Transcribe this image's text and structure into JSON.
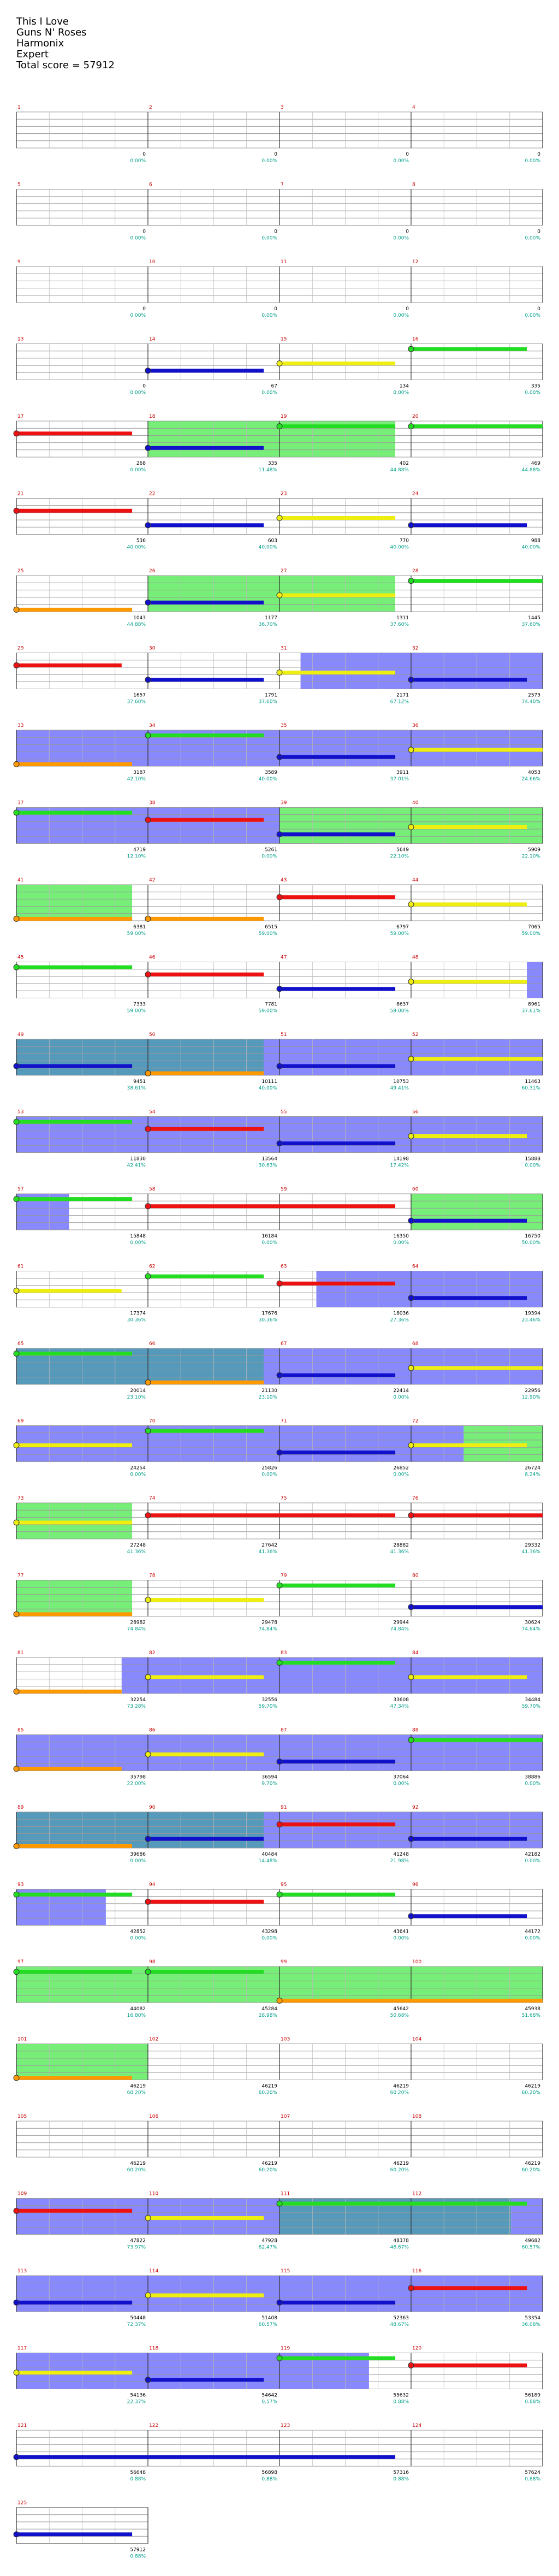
{
  "song": {
    "title": "This I Love",
    "artist": "Guns N' Roses",
    "game": "Harmonix",
    "difficulty": "Expert",
    "total_score_label": "Total score = 57912"
  },
  "colors": {
    "green": "#22dd22",
    "red": "#ee1111",
    "yellow": "#eeee11",
    "blue": "#1111cc",
    "orange": "#ff9900",
    "overdrive_fill": "#8888ff",
    "solo_fill": "#77ee77",
    "overlap_fill": "#5599bb",
    "score_text": "#00a08a",
    "measure_text": "#cc0000"
  },
  "chart_data": {
    "type": "table",
    "measures_per_row": 4,
    "measure_count": 125,
    "rows": [
      {
        "scores": [
          "0",
          "0",
          "0",
          "0"
        ],
        "pct": [
          "0.00%",
          "0.00%",
          "0.00%",
          "0.00%"
        ]
      },
      {
        "scores": [
          "0",
          "0",
          "0",
          "0"
        ],
        "pct": [
          "0.00%",
          "0.00%",
          "0.00%",
          "0.00%"
        ]
      },
      {
        "scores": [
          "0",
          "0",
          "0",
          "0"
        ],
        "pct": [
          "0.00%",
          "0.00%",
          "0.00%",
          "0.00%"
        ]
      },
      {
        "scores": [
          "0",
          "67",
          "134",
          "335"
        ],
        "pct": [
          "0.00%",
          "0.00%",
          "0.00%",
          "0.00%"
        ]
      },
      {
        "scores": [
          "268",
          "335",
          "402",
          "469"
        ],
        "pct": [
          "0.00%",
          "11.48%",
          "44.88%",
          "44.88%"
        ]
      },
      {
        "scores": [
          "536",
          "603",
          "770",
          "988"
        ],
        "pct": [
          "40.00%",
          "40.00%",
          "40.00%",
          "40.00%"
        ]
      },
      {
        "scores": [
          "1043",
          "1177",
          "1311",
          "1445"
        ],
        "pct": [
          "44.88%",
          "36.70%",
          "37.60%",
          "37.60%"
        ]
      },
      {
        "scores": [
          "1657",
          "1791",
          "2171",
          "2573"
        ],
        "pct": [
          "37.60%",
          "37.60%",
          "67.12%",
          "74.40%"
        ]
      },
      {
        "scores": [
          "3187",
          "3589",
          "3911",
          "4053"
        ],
        "pct": [
          "42.10%",
          "40.00%",
          "37.01%",
          "24.66%"
        ]
      },
      {
        "scores": [
          "4719",
          "5261",
          "5649",
          "5909"
        ],
        "pct": [
          "12.10%",
          "0.00%",
          "22.10%",
          "22.10%"
        ]
      },
      {
        "scores": [
          "6381",
          "6515",
          "6797",
          "7065"
        ],
        "pct": [
          "59.00%",
          "59.00%",
          "59.00%",
          "59.00%"
        ]
      },
      {
        "scores": [
          "7333",
          "7781",
          "8637",
          "8961"
        ],
        "pct": [
          "59.00%",
          "59.00%",
          "59.00%",
          "37.61%"
        ]
      },
      {
        "scores": [
          "9451",
          "10111",
          "10753",
          "11463"
        ],
        "pct": [
          "38.61%",
          "40.00%",
          "49.41%",
          "60.31%"
        ]
      },
      {
        "scores": [
          "11830",
          "13564",
          "14198",
          "15888"
        ],
        "pct": [
          "42.41%",
          "30.63%",
          "17.42%",
          "0.00%"
        ]
      },
      {
        "scores": [
          "15848",
          "16184",
          "16350",
          "16750"
        ],
        "pct": [
          "0.00%",
          "0.00%",
          "0.00%",
          "50.00%"
        ]
      },
      {
        "scores": [
          "17374",
          "17676",
          "18036",
          "19394"
        ],
        "pct": [
          "30.36%",
          "30.36%",
          "27.36%",
          "23.46%"
        ]
      },
      {
        "scores": [
          "20014",
          "21130",
          "22414",
          "22956"
        ],
        "pct": [
          "23.10%",
          "23.10%",
          "0.00%",
          "12.90%"
        ]
      },
      {
        "scores": [
          "24254",
          "25826",
          "26852",
          "26724"
        ],
        "pct": [
          "0.00%",
          "0.00%",
          "0.00%",
          "8.24%"
        ]
      },
      {
        "scores": [
          "27248",
          "27642",
          "28882",
          "29332"
        ],
        "pct": [
          "41.36%",
          "41.36%",
          "41.36%",
          "41.36%"
        ]
      },
      {
        "scores": [
          "28982",
          "29478",
          "29944",
          "30624"
        ],
        "pct": [
          "74.84%",
          "74.84%",
          "74.84%",
          "74.84%"
        ]
      },
      {
        "scores": [
          "32254",
          "32556",
          "33608",
          "34484"
        ],
        "pct": [
          "73.28%",
          "59.70%",
          "47.34%",
          "59.70%"
        ]
      },
      {
        "scores": [
          "35798",
          "36594",
          "37064",
          "38886"
        ],
        "pct": [
          "22.00%",
          "9.70%",
          "0.00%",
          "0.00%"
        ]
      },
      {
        "scores": [
          "39686",
          "40484",
          "41248",
          "42182"
        ],
        "pct": [
          "0.00%",
          "14.48%",
          "21.98%",
          "0.00%"
        ]
      },
      {
        "scores": [
          "42852",
          "43298",
          "43641",
          "44172"
        ],
        "pct": [
          "0.00%",
          "0.00%",
          "0.00%",
          "0.00%"
        ]
      },
      {
        "scores": [
          "44082",
          "45284",
          "45642",
          "45938"
        ],
        "pct": [
          "16.80%",
          "28.98%",
          "50.68%",
          "51.68%"
        ]
      },
      {
        "scores": [
          "46219",
          "46219",
          "46219",
          "46219"
        ],
        "pct": [
          "60.20%",
          "60.20%",
          "60.20%",
          "60.20%"
        ]
      },
      {
        "scores": [
          "46219",
          "46219",
          "46219",
          "46219"
        ],
        "pct": [
          "60.20%",
          "60.20%",
          "60.20%",
          "60.20%"
        ]
      },
      {
        "scores": [
          "47822",
          "47928",
          "48378",
          "49682"
        ],
        "pct": [
          "73.97%",
          "62.47%",
          "48.67%",
          "60.57%"
        ]
      },
      {
        "scores": [
          "50448",
          "51408",
          "52363",
          "53354"
        ],
        "pct": [
          "72.37%",
          "60.57%",
          "48.67%",
          "36.08%"
        ]
      },
      {
        "scores": [
          "54136",
          "54642",
          "55632",
          "56189"
        ],
        "pct": [
          "22.37%",
          "0.57%",
          "0.88%",
          "0.88%"
        ]
      },
      {
        "scores": [
          "56648",
          "56898",
          "57316",
          "57624"
        ],
        "pct": [
          "0.88%",
          "0.88%",
          "0.88%",
          "0.88%"
        ]
      },
      {
        "scores": [
          "57912"
        ],
        "pct": [
          "0.88%"
        ]
      }
    ],
    "row_highlights": [
      [],
      [],
      [],
      [],
      [
        {
          "s": 0.25,
          "e": 0.72,
          "t": "solo"
        }
      ],
      [],
      [
        {
          "s": 0.25,
          "e": 0.72,
          "t": "solo"
        }
      ],
      [
        {
          "s": 0.54,
          "e": 1.0,
          "t": "od"
        }
      ],
      [
        {
          "s": 0.0,
          "e": 1.0,
          "t": "od"
        }
      ],
      [
        {
          "s": 0.0,
          "e": 0.5,
          "t": "od"
        },
        {
          "s": 0.5,
          "e": 1.0,
          "t": "solo"
        }
      ],
      [
        {
          "s": 0.0,
          "e": 0.22,
          "t": "solo"
        }
      ],
      [
        {
          "s": 0.97,
          "e": 1.0,
          "t": "od"
        }
      ],
      [
        {
          "s": 0.0,
          "e": 0.47,
          "t": "ovl"
        },
        {
          "s": 0.47,
          "e": 1.0,
          "t": "od"
        }
      ],
      [
        {
          "s": 0.0,
          "e": 1.0,
          "t": "od"
        }
      ],
      [
        {
          "s": 0.0,
          "e": 0.1,
          "t": "od"
        },
        {
          "s": 0.75,
          "e": 1.0,
          "t": "solo"
        }
      ],
      [
        {
          "s": 0.57,
          "e": 1.0,
          "t": "od"
        }
      ],
      [
        {
          "s": 0.0,
          "e": 0.47,
          "t": "ovl"
        },
        {
          "s": 0.47,
          "e": 1.0,
          "t": "od"
        }
      ],
      [
        {
          "s": 0.0,
          "e": 0.85,
          "t": "od"
        },
        {
          "s": 0.85,
          "e": 1.0,
          "t": "solo"
        }
      ],
      [
        {
          "s": 0.0,
          "e": 0.22,
          "t": "solo"
        }
      ],
      [
        {
          "s": 0.0,
          "e": 0.22,
          "t": "solo"
        }
      ],
      [
        {
          "s": 0.2,
          "e": 1.0,
          "t": "od"
        }
      ],
      [
        {
          "s": 0.0,
          "e": 1.0,
          "t": "od"
        }
      ],
      [
        {
          "s": 0.0,
          "e": 0.47,
          "t": "ovl"
        },
        {
          "s": 0.47,
          "e": 1.0,
          "t": "od"
        }
      ],
      [
        {
          "s": 0.0,
          "e": 0.17,
          "t": "od"
        }
      ],
      [
        {
          "s": 0.0,
          "e": 1.0,
          "t": "solo"
        }
      ],
      [
        {
          "s": 0.0,
          "e": 0.25,
          "t": "solo"
        }
      ],
      [],
      [
        {
          "s": 0.0,
          "e": 0.5,
          "t": "od"
        },
        {
          "s": 0.5,
          "e": 0.94,
          "t": "ovl"
        },
        {
          "s": 0.94,
          "e": 1.0,
          "t": "od"
        }
      ],
      [
        {
          "s": 0.0,
          "e": 1.0,
          "t": "od"
        }
      ],
      [
        {
          "s": 0.0,
          "e": 0.67,
          "t": "od"
        }
      ],
      [],
      []
    ],
    "row_sustains": [
      [],
      [],
      [],
      [
        {
          "c": "blue",
          "s": 0.25,
          "e": 0.47
        },
        {
          "c": "yellow",
          "s": 0.5,
          "e": 0.72
        },
        {
          "c": "green",
          "s": 0.75,
          "e": 0.97
        }
      ],
      [
        {
          "c": "red",
          "s": 0.0,
          "e": 0.22
        },
        {
          "c": "blue",
          "s": 0.25,
          "e": 0.47
        },
        {
          "c": "green",
          "s": 0.5,
          "e": 0.72
        },
        {
          "c": "green",
          "s": 0.75,
          "e": 1.0
        }
      ],
      [
        {
          "c": "red",
          "s": 0.0,
          "e": 0.22
        },
        {
          "c": "blue",
          "s": 0.25,
          "e": 0.47
        },
        {
          "c": "yellow",
          "s": 0.5,
          "e": 0.72
        },
        {
          "c": "blue",
          "s": 0.75,
          "e": 0.97
        }
      ],
      [
        {
          "c": "orange",
          "s": 0.0,
          "e": 0.22
        },
        {
          "c": "blue",
          "s": 0.25,
          "e": 0.47
        },
        {
          "c": "yellow",
          "s": 0.5,
          "e": 0.72
        },
        {
          "c": "green",
          "s": 0.75,
          "e": 1.0
        }
      ],
      [
        {
          "c": "red",
          "s": 0.0,
          "e": 0.2
        },
        {
          "c": "blue",
          "s": 0.25,
          "e": 0.47
        },
        {
          "c": "yellow",
          "s": 0.5,
          "e": 0.72
        },
        {
          "c": "blue",
          "s": 0.75,
          "e": 0.97
        }
      ],
      [
        {
          "c": "orange",
          "s": 0.0,
          "e": 0.22
        },
        {
          "c": "green",
          "s": 0.25,
          "e": 0.47
        },
        {
          "c": "blue",
          "s": 0.5,
          "e": 0.72
        },
        {
          "c": "yellow",
          "s": 0.75,
          "e": 1.0
        }
      ],
      [
        {
          "c": "green",
          "s": 0.0,
          "e": 0.22
        },
        {
          "c": "red",
          "s": 0.25,
          "e": 0.47
        },
        {
          "c": "blue",
          "s": 0.5,
          "e": 0.72
        },
        {
          "c": "yellow",
          "s": 0.75,
          "e": 0.97
        }
      ],
      [
        {
          "c": "orange",
          "s": 0.0,
          "e": 0.22
        },
        {
          "c": "orange",
          "s": 0.25,
          "e": 0.47
        },
        {
          "c": "red",
          "s": 0.5,
          "e": 0.72
        },
        {
          "c": "yellow",
          "s": 0.75,
          "e": 0.97
        }
      ],
      [
        {
          "c": "green",
          "s": 0.0,
          "e": 0.22
        },
        {
          "c": "red",
          "s": 0.25,
          "e": 0.47
        },
        {
          "c": "blue",
          "s": 0.5,
          "e": 0.72
        },
        {
          "c": "yellow",
          "s": 0.75,
          "e": 0.97
        }
      ],
      [
        {
          "c": "blue",
          "s": 0.0,
          "e": 0.22
        },
        {
          "c": "orange",
          "s": 0.25,
          "e": 0.47
        },
        {
          "c": "blue",
          "s": 0.5,
          "e": 0.72
        },
        {
          "c": "yellow",
          "s": 0.75,
          "e": 1.0
        }
      ],
      [
        {
          "c": "green",
          "s": 0.0,
          "e": 0.22
        },
        {
          "c": "red",
          "s": 0.25,
          "e": 0.47
        },
        {
          "c": "blue",
          "s": 0.5,
          "e": 0.72
        },
        {
          "c": "yellow",
          "s": 0.75,
          "e": 0.97
        }
      ],
      [
        {
          "c": "green",
          "s": 0.0,
          "e": 0.22
        },
        {
          "c": "red",
          "s": 0.25,
          "e": 0.72
        },
        {
          "c": "blue",
          "s": 0.75,
          "e": 0.97
        }
      ],
      [
        {
          "c": "yellow",
          "s": 0.0,
          "e": 0.2
        },
        {
          "c": "green",
          "s": 0.25,
          "e": 0.47
        },
        {
          "c": "red",
          "s": 0.5,
          "e": 0.72
        },
        {
          "c": "blue",
          "s": 0.75,
          "e": 0.97
        }
      ],
      [
        {
          "c": "green",
          "s": 0.0,
          "e": 0.22
        },
        {
          "c": "orange",
          "s": 0.25,
          "e": 0.47
        },
        {
          "c": "blue",
          "s": 0.5,
          "e": 0.72
        },
        {
          "c": "yellow",
          "s": 0.75,
          "e": 1.0
        }
      ],
      [
        {
          "c": "yellow",
          "s": 0.0,
          "e": 0.22
        },
        {
          "c": "green",
          "s": 0.25,
          "e": 0.47
        },
        {
          "c": "blue",
          "s": 0.5,
          "e": 0.72
        },
        {
          "c": "yellow",
          "s": 0.75,
          "e": 0.97
        }
      ],
      [
        {
          "c": "yellow",
          "s": 0.0,
          "e": 0.22
        },
        {
          "c": "red",
          "s": 0.25,
          "e": 0.72
        },
        {
          "c": "red",
          "s": 0.75,
          "e": 1.0
        }
      ],
      [
        {
          "c": "orange",
          "s": 0.0,
          "e": 0.22
        },
        {
          "c": "yellow",
          "s": 0.25,
          "e": 0.47
        },
        {
          "c": "green",
          "s": 0.5,
          "e": 0.72
        },
        {
          "c": "blue",
          "s": 0.75,
          "e": 1.0
        }
      ],
      [
        {
          "c": "orange",
          "s": 0.0,
          "e": 0.2
        },
        {
          "c": "yellow",
          "s": 0.25,
          "e": 0.47
        },
        {
          "c": "green",
          "s": 0.5,
          "e": 0.72
        },
        {
          "c": "yellow",
          "s": 0.75,
          "e": 0.97
        }
      ],
      [
        {
          "c": "orange",
          "s": 0.0,
          "e": 0.2
        },
        {
          "c": "yellow",
          "s": 0.25,
          "e": 0.47
        },
        {
          "c": "blue",
          "s": 0.5,
          "e": 0.72
        },
        {
          "c": "green",
          "s": 0.75,
          "e": 1.0
        }
      ],
      [
        {
          "c": "orange",
          "s": 0.0,
          "e": 0.22
        },
        {
          "c": "blue",
          "s": 0.25,
          "e": 0.47
        },
        {
          "c": "red",
          "s": 0.5,
          "e": 0.72
        },
        {
          "c": "blue",
          "s": 0.75,
          "e": 0.97
        }
      ],
      [
        {
          "c": "green",
          "s": 0.0,
          "e": 0.22
        },
        {
          "c": "red",
          "s": 0.25,
          "e": 0.47
        },
        {
          "c": "green",
          "s": 0.5,
          "e": 0.72
        },
        {
          "c": "blue",
          "s": 0.75,
          "e": 0.97
        }
      ],
      [
        {
          "c": "green",
          "s": 0.0,
          "e": 0.22
        },
        {
          "c": "green",
          "s": 0.25,
          "e": 0.47
        },
        {
          "c": "orange",
          "s": 0.5,
          "e": 1.0
        }
      ],
      [
        {
          "c": "orange",
          "s": 0.0,
          "e": 0.22
        }
      ],
      [],
      [
        {
          "c": "red",
          "s": 0.0,
          "e": 0.22
        },
        {
          "c": "yellow",
          "s": 0.25,
          "e": 0.47
        },
        {
          "c": "green",
          "s": 0.5,
          "e": 0.97
        }
      ],
      [
        {
          "c": "blue",
          "s": 0.0,
          "e": 0.22
        },
        {
          "c": "yellow",
          "s": 0.25,
          "e": 0.47
        },
        {
          "c": "blue",
          "s": 0.5,
          "e": 0.72
        },
        {
          "c": "red",
          "s": 0.75,
          "e": 0.97
        }
      ],
      [
        {
          "c": "yellow",
          "s": 0.0,
          "e": 0.22
        },
        {
          "c": "blue",
          "s": 0.25,
          "e": 0.47
        },
        {
          "c": "green",
          "s": 0.5,
          "e": 0.72
        },
        {
          "c": "red",
          "s": 0.75,
          "e": 0.97
        }
      ],
      [
        {
          "c": "blue",
          "s": 0.0,
          "e": 0.72
        }
      ],
      [
        {
          "c": "blue",
          "s": 0.0,
          "e": 0.22
        }
      ]
    ]
  }
}
